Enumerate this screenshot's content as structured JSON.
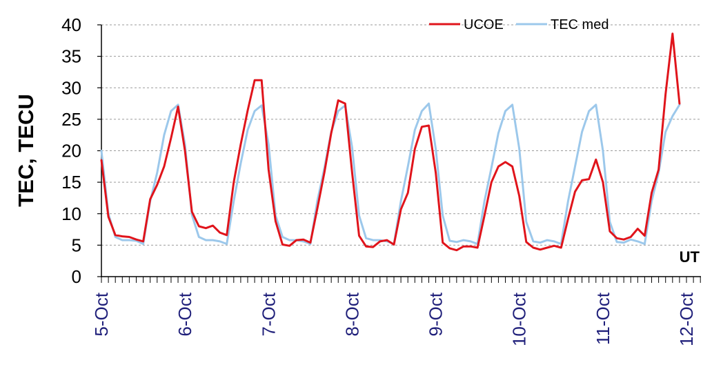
{
  "chart_data": {
    "type": "line",
    "title": "",
    "xlabel": "UT",
    "ylabel": "TEC, TECU",
    "ylim": [
      0,
      40
    ],
    "yticks": [
      "0",
      "5",
      "10",
      "15",
      "20",
      "25",
      "30",
      "35",
      "40"
    ],
    "xlim": [
      0,
      7
    ],
    "categories": [
      "5-Oct",
      "6-Oct",
      "7-Oct",
      "8-Oct",
      "9-Oct",
      "10-Oct",
      "11-Oct",
      "12-Oct"
    ],
    "grid": "horizontal",
    "legend": "top-right",
    "series": [
      {
        "name": "UCOE",
        "color": "#e0141b",
        "x": [
          0,
          0.0833,
          0.1667,
          0.25,
          0.3333,
          0.4167,
          0.5,
          0.5833,
          0.6667,
          0.75,
          0.8333,
          0.9167,
          1,
          1.0833,
          1.1667,
          1.25,
          1.3333,
          1.4167,
          1.5,
          1.5833,
          1.6667,
          1.75,
          1.8333,
          1.9167,
          2,
          2.0833,
          2.1667,
          2.25,
          2.3333,
          2.4167,
          2.5,
          2.5833,
          2.6667,
          2.75,
          2.8333,
          2.9167,
          3,
          3.0833,
          3.1667,
          3.25,
          3.3333,
          3.4167,
          3.5,
          3.5833,
          3.6667,
          3.75,
          3.8333,
          3.9167,
          4,
          4.0833,
          4.1667,
          4.25,
          4.3333,
          4.4167,
          4.5,
          4.5833,
          4.6667,
          4.75,
          4.8333,
          4.9167,
          5,
          5.0833,
          5.1667,
          5.25,
          5.3333,
          5.4167,
          5.5,
          5.5833,
          5.6667,
          5.75,
          5.8333,
          5.9167,
          6,
          6.0833,
          6.1667,
          6.25,
          6.3333,
          6.4167,
          6.5,
          6.5833,
          6.6667,
          6.75,
          6.8333,
          6.9167
        ],
        "values": [
          18.5,
          9.5,
          6.6,
          6.4,
          6.3,
          5.9,
          5.6,
          12.3,
          14.6,
          17.5,
          22,
          27,
          20,
          10.3,
          8,
          7.7,
          8.1,
          7,
          6.6,
          15,
          21,
          26.4,
          31.2,
          31.2,
          17,
          8.8,
          5.1,
          4.9,
          5.8,
          5.9,
          5.4,
          10.8,
          16.5,
          22.8,
          28,
          27.5,
          16.5,
          6.5,
          4.8,
          4.7,
          5.6,
          5.8,
          5.1,
          10.7,
          13.3,
          20.3,
          23.8,
          24,
          16.5,
          5.4,
          4.5,
          4.2,
          4.8,
          4.8,
          4.6,
          9.7,
          15,
          17.5,
          18.2,
          17.5,
          12.8,
          5.5,
          4.6,
          4.3,
          4.6,
          4.9,
          4.6,
          9.2,
          13.5,
          15.3,
          15.5,
          18.6,
          15,
          7.2,
          6.1,
          5.9,
          6.3,
          7.6,
          6.5,
          13.3,
          17,
          29,
          38.6,
          27.5
        ]
      },
      {
        "name": "TEC med",
        "color": "#9cc8eb",
        "x": [
          0,
          0.0833,
          0.1667,
          0.25,
          0.3333,
          0.4167,
          0.5,
          0.5833,
          0.6667,
          0.75,
          0.8333,
          0.9167,
          1,
          1.0833,
          1.1667,
          1.25,
          1.3333,
          1.4167,
          1.5,
          1.5833,
          1.6667,
          1.75,
          1.8333,
          1.9167,
          2,
          2.0833,
          2.1667,
          2.25,
          2.3333,
          2.4167,
          2.5,
          2.5833,
          2.6667,
          2.75,
          2.8333,
          2.9167,
          3,
          3.0833,
          3.1667,
          3.25,
          3.3333,
          3.4167,
          3.5,
          3.5833,
          3.6667,
          3.75,
          3.8333,
          3.9167,
          4,
          4.0833,
          4.1667,
          4.25,
          4.3333,
          4.4167,
          4.5,
          4.5833,
          4.6667,
          4.75,
          4.8333,
          4.9167,
          5,
          5.0833,
          5.1667,
          5.25,
          5.3333,
          5.4167,
          5.5,
          5.5833,
          5.6667,
          5.75,
          5.8333,
          5.9167,
          6,
          6.0833,
          6.1667,
          6.25,
          6.3333,
          6.4167,
          6.5,
          6.5833,
          6.6667,
          6.75,
          6.8333,
          6.9167
        ],
        "values": [
          20,
          10,
          6.3,
          5.8,
          5.8,
          5.7,
          5.2,
          12,
          16.5,
          22.5,
          26.3,
          27.3,
          21,
          9.8,
          6.3,
          5.8,
          5.8,
          5.6,
          5.2,
          12,
          18,
          23.3,
          26.3,
          27.2,
          21,
          9.7,
          6.3,
          5.8,
          5.8,
          5.6,
          5.2,
          12,
          17.2,
          23,
          26.3,
          27.2,
          20.5,
          9.7,
          6.1,
          5.8,
          5.8,
          5.6,
          5.2,
          12,
          17.5,
          23.3,
          26.3,
          27.5,
          20.3,
          9.7,
          5.7,
          5.5,
          5.8,
          5.6,
          5.2,
          12,
          17.3,
          22.8,
          26.3,
          27.3,
          20.3,
          8.7,
          5.6,
          5.4,
          5.8,
          5.6,
          5.2,
          12,
          17.5,
          23,
          26.3,
          27.3,
          20,
          8.7,
          5.5,
          5.4,
          5.9,
          5.6,
          5.2,
          12,
          16.5,
          23,
          25.5,
          27.3
        ]
      }
    ]
  }
}
